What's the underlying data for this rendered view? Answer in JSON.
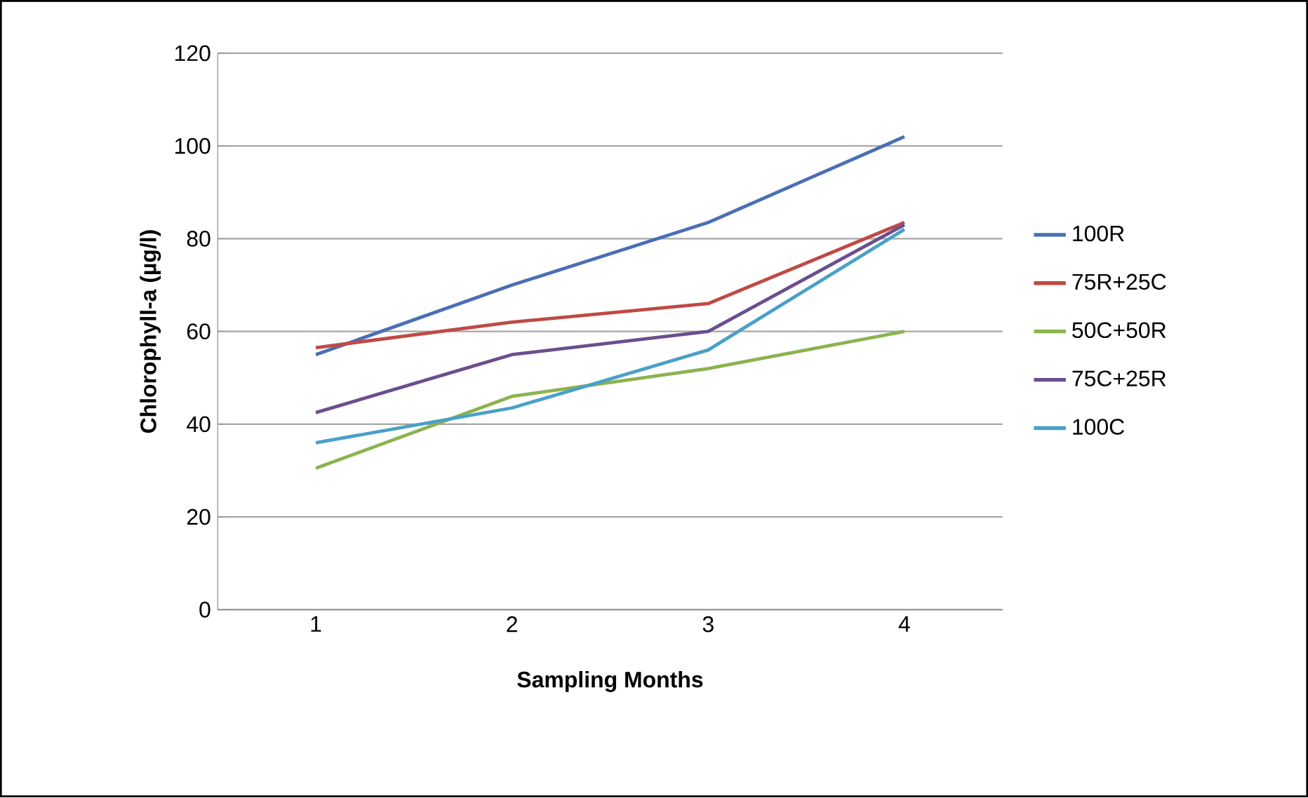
{
  "chart_data": {
    "type": "line",
    "xlabel": "Sampling Months",
    "ylabel": "Chlorophyll-a (µg/l)",
    "categories": [
      "1",
      "2",
      "3",
      "4"
    ],
    "series": [
      {
        "name": "100R",
        "color": "#4a6fb5",
        "values": [
          55,
          70,
          83.5,
          102
        ]
      },
      {
        "name": "75R+25C",
        "color": "#bf4a45",
        "values": [
          56.5,
          62,
          66,
          83.5
        ]
      },
      {
        "name": "50C+50R",
        "color": "#8bb34f",
        "values": [
          30.5,
          46,
          52,
          60
        ]
      },
      {
        "name": "75C+25R",
        "color": "#6a4f8e",
        "values": [
          42.5,
          55,
          60,
          83
        ]
      },
      {
        "name": "100C",
        "color": "#4aa0c8",
        "values": [
          36,
          43.5,
          56,
          82
        ]
      }
    ],
    "ylim": [
      0,
      120
    ],
    "yticks": [
      0,
      20,
      40,
      60,
      80,
      100,
      120
    ],
    "grid": "y",
    "legend": "right",
    "marker": "none",
    "line_style": "solid"
  }
}
